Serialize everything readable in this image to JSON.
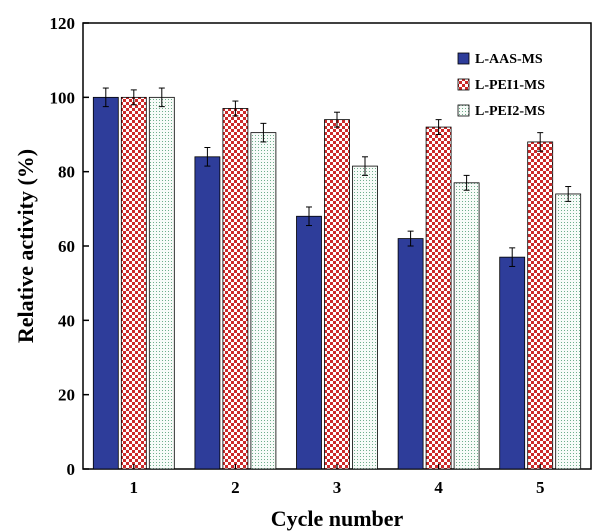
{
  "chart_data": {
    "type": "bar",
    "title": "",
    "xlabel": "Cycle number",
    "ylabel": "Relative activity (%)",
    "categories": [
      "1",
      "2",
      "3",
      "4",
      "5"
    ],
    "ylim": [
      0,
      120
    ],
    "yticks": [
      0,
      20,
      40,
      60,
      80,
      100,
      120
    ],
    "grid": false,
    "legend_position": "top-right",
    "series": [
      {
        "name": "L-AAS-MS",
        "values": [
          100,
          84,
          68,
          62,
          57
        ],
        "errors": [
          2.5,
          2.5,
          2.5,
          2,
          2.5
        ],
        "pattern": "solid",
        "color": "#2e3d9a"
      },
      {
        "name": "L-PEI1-MS",
        "values": [
          100,
          97,
          94,
          92,
          88
        ],
        "errors": [
          2,
          2,
          2,
          2,
          2.5
        ],
        "pattern": "checker",
        "color": "#cc2a2a"
      },
      {
        "name": "L-PEI2-MS",
        "values": [
          100,
          90.5,
          81.5,
          77,
          74
        ],
        "errors": [
          2.5,
          2.5,
          2.5,
          2,
          2
        ],
        "pattern": "dotted",
        "color": "#7fbf9f"
      }
    ]
  }
}
